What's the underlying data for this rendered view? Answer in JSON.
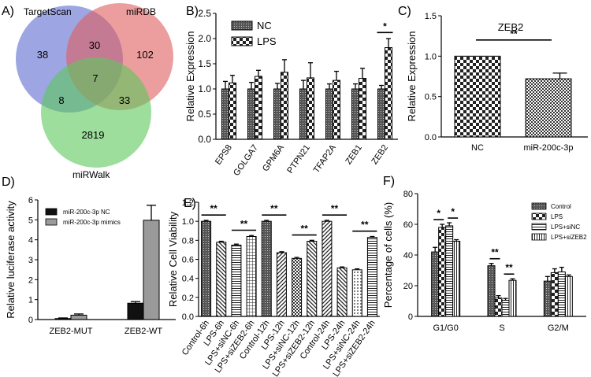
{
  "panelA": {
    "label": "A)",
    "sets": [
      "TargetScan",
      "miRDB",
      "miRWalk"
    ],
    "colors": [
      "#5b6bd0",
      "#e05e5e",
      "#5cc85c"
    ],
    "counts": {
      "ts_only": "38",
      "ts_mirdb": "30",
      "mirdb_only": "102",
      "all": "7",
      "ts_mirwalk": "8",
      "mirdb_mirwalk": "33",
      "mirwalk_only": "2819"
    }
  },
  "chart_data": [
    {
      "panel": "B)",
      "type": "bar",
      "ylabel": "Relative Expression",
      "ylim": [
        0,
        2.5
      ],
      "yticks": [
        "0.0",
        "0.5",
        "1.0",
        "1.5",
        "2.0",
        "2.5"
      ],
      "categories": [
        "EPS8",
        "GOLGA7",
        "GPM6A",
        "PTPN21",
        "TFAP2A",
        "ZEB1",
        "ZEB2"
      ],
      "series": [
        {
          "name": "NC",
          "values": [
            1.0,
            1.0,
            1.0,
            1.0,
            1.0,
            1.0,
            1.0
          ],
          "errors": [
            0.15,
            0.13,
            0.11,
            0.17,
            0.1,
            0.1,
            0.07
          ]
        },
        {
          "name": "LPS",
          "values": [
            1.12,
            1.25,
            1.33,
            1.22,
            1.17,
            1.21,
            1.82
          ],
          "errors": [
            0.15,
            0.12,
            0.25,
            0.3,
            0.18,
            0.2,
            0.18
          ]
        }
      ],
      "significance": [
        {
          "category": "ZEB2",
          "label": "*"
        }
      ]
    },
    {
      "panel": "C)",
      "type": "bar",
      "title": "ZEB2",
      "ylabel": "Relative Expression",
      "ylim": [
        0,
        1.5
      ],
      "yticks": [
        "0.0",
        "0.5",
        "1.0",
        "1.5"
      ],
      "categories": [
        "NC",
        "miR-200c-3p"
      ],
      "values": [
        1.0,
        0.72
      ],
      "errors": [
        0,
        0.07
      ],
      "significance": [
        {
          "label": "**"
        }
      ]
    },
    {
      "panel": "D)",
      "type": "bar",
      "ylabel": "Relative luciferase activity",
      "ylim": [
        0,
        6
      ],
      "yticks": [
        "0",
        "1",
        "2",
        "3",
        "4",
        "5",
        "6"
      ],
      "categories": [
        "ZEB2-MUT",
        "ZEB2-WT"
      ],
      "series": [
        {
          "name": "miR-200c-3p NC",
          "values": [
            0.05,
            0.82
          ],
          "errors": [
            0.03,
            0.08
          ]
        },
        {
          "name": "miR-200c-3p mimics",
          "values": [
            0.22,
            4.98
          ],
          "errors": [
            0.06,
            0.75
          ]
        }
      ]
    },
    {
      "panel": "E)",
      "type": "bar",
      "ylabel": "Relative Cell Viability",
      "ylim": [
        0,
        1.2
      ],
      "yticks": [
        "0.0",
        "0.2",
        "0.4",
        "0.6",
        "0.8",
        "1.0",
        "1.2"
      ],
      "categories": [
        "Control-6h",
        "LPS-6h",
        "LPS+siNC-6h",
        "LPS+siZEB2-6h",
        "Control-12h",
        "LPS-12h",
        "LPS+siNC-12h",
        "LPS+siZEB2-12h",
        "Control-24h",
        "LPS-24h",
        "LPS+siNC-24h",
        "LPS+siZEB2-24h"
      ],
      "values": [
        1.0,
        0.78,
        0.75,
        0.84,
        1.0,
        0.67,
        0.61,
        0.79,
        1.0,
        0.51,
        0.49,
        0.83
      ],
      "errors": [
        0.01,
        0.01,
        0.01,
        0.01,
        0.01,
        0.01,
        0.01,
        0.01,
        0.01,
        0.01,
        0.01,
        0.01
      ],
      "significance": [
        "**",
        "**",
        "**",
        "**",
        "**",
        "**"
      ]
    },
    {
      "panel": "F)",
      "type": "bar",
      "ylabel": "Percentage of cells (%)",
      "ylim": [
        0,
        80
      ],
      "yticks": [
        "0",
        "20",
        "40",
        "60",
        "80"
      ],
      "categories": [
        "G1/G0",
        "S",
        "G2/M"
      ],
      "series": [
        {
          "name": "Control",
          "values": [
            42,
            33,
            23
          ],
          "errors": [
            3,
            1.5,
            3
          ]
        },
        {
          "name": "LPS",
          "values": [
            58,
            12,
            28.5
          ],
          "errors": [
            2,
            1.5,
            2.5
          ]
        },
        {
          "name": "LPS+siNC",
          "values": [
            59,
            10.5,
            29
          ],
          "errors": [
            2,
            1.2,
            3
          ]
        },
        {
          "name": "LPS+siZEB2",
          "values": [
            49,
            23.5,
            26
          ],
          "errors": [
            1,
            1,
            1
          ]
        }
      ],
      "significance": [
        "*",
        "*",
        "**",
        "**"
      ]
    }
  ]
}
